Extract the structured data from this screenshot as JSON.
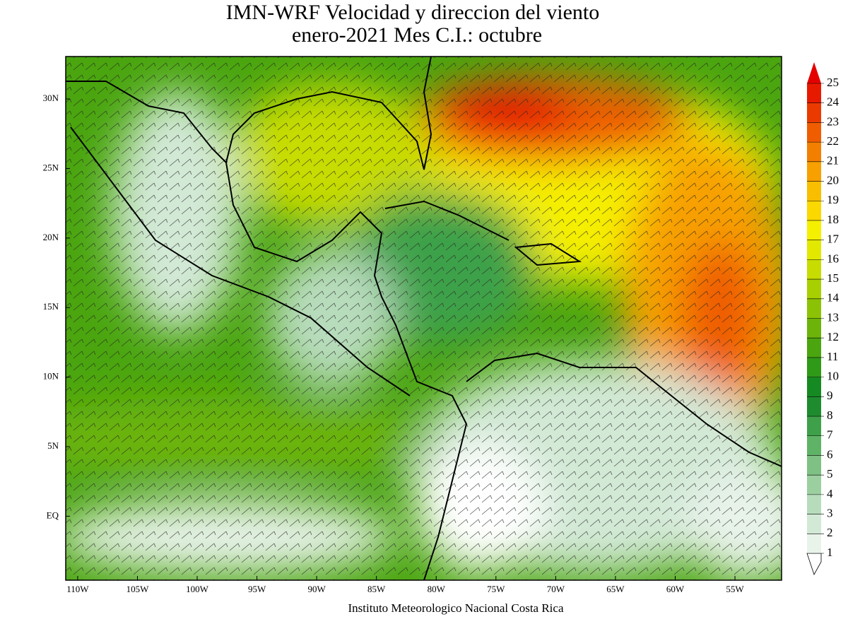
{
  "title": [
    "IMN-WRF Velocidad y direccion del viento",
    "enero-2021 Mes C.I.: octubre"
  ],
  "lon_range": [
    -111,
    -51.1
  ],
  "lat_range": [
    -4.6,
    33.05
  ],
  "lon_ticks": [
    {
      "value": -110,
      "label": "110W"
    },
    {
      "value": -105,
      "label": "105W"
    },
    {
      "value": -100,
      "label": "100W"
    },
    {
      "value": -95,
      "label": "95W"
    },
    {
      "value": -90,
      "label": "90W"
    },
    {
      "value": -85,
      "label": "85W"
    },
    {
      "value": -80,
      "label": "80W"
    },
    {
      "value": -75,
      "label": "75W"
    },
    {
      "value": -70,
      "label": "70W"
    },
    {
      "value": -65,
      "label": "65W"
    },
    {
      "value": -60,
      "label": "60W"
    },
    {
      "value": -55,
      "label": "55W"
    }
  ],
  "lat_ticks": [
    {
      "value": 0,
      "label": "EQ"
    },
    {
      "value": 5,
      "label": "5N"
    },
    {
      "value": 10,
      "label": "10N"
    },
    {
      "value": 15,
      "label": "15N"
    },
    {
      "value": 20,
      "label": "20N"
    },
    {
      "value": 25,
      "label": "25N"
    },
    {
      "value": 30,
      "label": "30N"
    }
  ],
  "colorbar": {
    "levels": [
      1,
      2,
      3,
      4,
      5,
      6,
      7,
      8,
      9,
      10,
      11,
      12,
      13,
      14,
      15,
      16,
      17,
      18,
      19,
      20,
      21,
      22,
      23,
      24,
      25
    ],
    "colors": [
      "#ffffff",
      "#e8f3ea",
      "#d2e9d6",
      "#b7dcbc",
      "#9ccf9f",
      "#7fc184",
      "#5fb366",
      "#3ea14a",
      "#1e8c2e",
      "#168a22",
      "#2f9a18",
      "#4aa50f",
      "#6cb40a",
      "#8cc205",
      "#a8cf00",
      "#c7dc00",
      "#e2e800",
      "#f5ef00",
      "#fad800",
      "#f9be00",
      "#f7a000",
      "#f37f00",
      "#ef5d00",
      "#eb3a00",
      "#e71a00",
      "#e50000"
    ]
  },
  "credit": "Instituto Meteorologico Nacional Costa Rica"
}
